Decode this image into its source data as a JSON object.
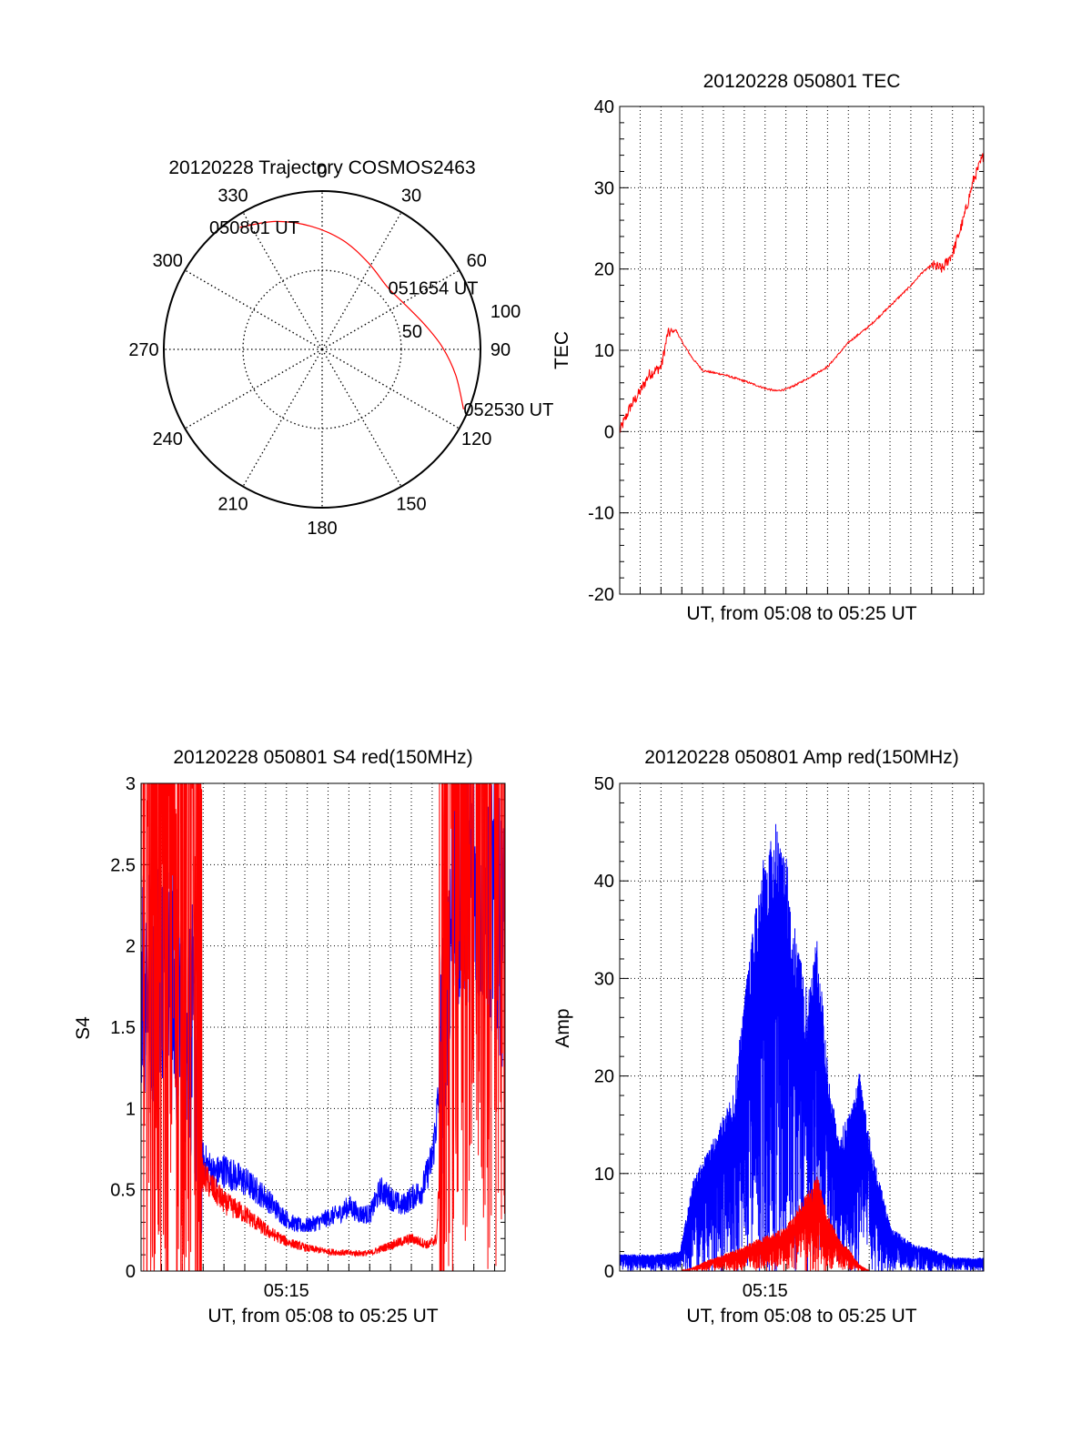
{
  "chart_data": [
    {
      "type": "polar",
      "title": "20120228 Trajectory COSMOS2463",
      "azimuth_labels": [
        "0",
        "30",
        "60",
        "90",
        "120",
        "150",
        "180",
        "210",
        "240",
        "270",
        "300",
        "330"
      ],
      "radial_labels": [
        {
          "text": "50",
          "value": 50
        },
        {
          "text": "100",
          "value": 100
        }
      ],
      "rlim": [
        0,
        100
      ],
      "grid": true,
      "colors": {
        "track": "#ff0000",
        "grid": "#000000"
      },
      "trajectory": [
        {
          "az": 326,
          "r": 93
        },
        {
          "az": 340,
          "r": 86
        },
        {
          "az": 355,
          "r": 78
        },
        {
          "az": 11,
          "r": 70
        },
        {
          "az": 28,
          "r": 62
        },
        {
          "az": 47,
          "r": 57
        },
        {
          "az": 63,
          "r": 60
        },
        {
          "az": 77,
          "r": 67
        },
        {
          "az": 89,
          "r": 76
        },
        {
          "az": 101,
          "r": 86
        },
        {
          "az": 113,
          "r": 97
        }
      ],
      "annotations": [
        {
          "text": "050801 UT",
          "az": 326,
          "r": 93
        },
        {
          "text": "051654 UT",
          "az": 47,
          "r": 57
        },
        {
          "text": "052530 UT",
          "az": 113,
          "r": 97
        }
      ]
    },
    {
      "type": "line",
      "title": "20120228 050801 TEC",
      "xlabel": "UT, from 05:08 to 05:25 UT",
      "ylabel": "TEC",
      "xlim": [
        "05:08:01",
        "05:25:30"
      ],
      "ylim": [
        -20,
        40
      ],
      "yticks": [
        "-20",
        "-10",
        "0",
        "10",
        "20",
        "30",
        "40"
      ],
      "xtick_labels": [],
      "grid": true,
      "series": [
        {
          "color": "#ff0000",
          "x": [
            "05:08:01",
            "05:08:31",
            "05:09:01",
            "05:09:25",
            "05:10:01",
            "05:10:19",
            "05:10:43",
            "05:11:01",
            "05:11:31",
            "05:12:01",
            "05:13:01",
            "05:14:01",
            "05:15:01",
            "05:15:31",
            "05:16:01",
            "05:16:31",
            "05:17:01",
            "05:18:01",
            "05:19:01",
            "05:20:01",
            "05:21:01",
            "05:22:01",
            "05:22:31",
            "05:23:01",
            "05:23:31",
            "05:24:01",
            "05:24:31",
            "05:25:01",
            "05:25:30"
          ],
          "y": [
            0,
            3,
            5,
            7,
            8,
            12,
            12.5,
            11,
            9,
            7.5,
            7,
            6.2,
            5.3,
            5,
            5.2,
            5.8,
            6.5,
            8,
            11,
            13,
            15.5,
            18,
            19.5,
            20.5,
            20,
            22,
            26,
            31,
            34
          ]
        }
      ]
    },
    {
      "type": "line",
      "title": "20120228 050801 S4 red(150MHz)",
      "xlabel": "UT, from 05:08 to 05:25 UT",
      "ylabel": "S4",
      "xlim": [
        "05:08:01",
        "05:25:30"
      ],
      "ylim": [
        0,
        3
      ],
      "yticks": [
        "0",
        "0.5",
        "1",
        "1.5",
        "2",
        "2.5",
        "3"
      ],
      "xtick_labels": [
        "05:15"
      ],
      "grid": true,
      "series": [
        {
          "color": "#0000ff",
          "x": [
            "05:08:01",
            "05:08:31",
            "05:09:01",
            "05:09:31",
            "05:10:01",
            "05:10:31",
            "05:10:55",
            "05:11:31",
            "05:12:01",
            "05:13:01",
            "05:14:01",
            "05:14:31",
            "05:15:01",
            "05:15:31",
            "05:16:01",
            "05:16:31",
            "05:17:01",
            "05:17:31",
            "05:18:01",
            "05:18:31",
            "05:19:01",
            "05:19:31",
            "05:20:01",
            "05:20:31",
            "05:21:01",
            "05:21:31",
            "05:22:01",
            "05:22:25",
            "05:22:43",
            "05:23:01",
            "05:23:31",
            "05:24:01",
            "05:24:31",
            "05:25:01",
            "05:25:30"
          ],
          "y": [
            1.9,
            1.8,
            2.0,
            1.7,
            1.6,
            1.45,
            0.7,
            0.6,
            0.62,
            0.55,
            0.45,
            0.38,
            0.32,
            0.28,
            0.28,
            0.3,
            0.33,
            0.35,
            0.4,
            0.35,
            0.35,
            0.5,
            0.45,
            0.4,
            0.45,
            0.5,
            0.7,
            1.2,
            1.9,
            2.3,
            2.5,
            2.4,
            2.3,
            2.2,
            2.0
          ]
        },
        {
          "color": "#ff0000",
          "x": [
            "05:08:01",
            "05:08:31",
            "05:09:01",
            "05:09:31",
            "05:10:01",
            "05:10:31",
            "05:10:55",
            "05:11:31",
            "05:12:01",
            "05:13:01",
            "05:14:01",
            "05:15:01",
            "05:16:01",
            "05:17:01",
            "05:18:01",
            "05:19:01",
            "05:20:01",
            "05:21:01",
            "05:21:49",
            "05:22:13",
            "05:22:25",
            "05:22:43",
            "05:23:01",
            "05:23:31",
            "05:24:01",
            "05:25:30"
          ],
          "y": [
            2.6,
            2.7,
            2.5,
            2.8,
            2.6,
            2.3,
            0.6,
            0.5,
            0.42,
            0.35,
            0.25,
            0.18,
            0.14,
            0.12,
            0.11,
            0.11,
            0.16,
            0.2,
            0.16,
            0.2,
            0.8,
            2.7,
            3.0,
            3.0,
            3.0,
            3.0
          ]
        }
      ]
    },
    {
      "type": "line",
      "title": "20120228 050801 Amp red(150MHz)",
      "xlabel": "UT, from 05:08 to 05:25 UT",
      "ylabel": "Amp",
      "xlim": [
        "05:08:01",
        "05:25:30"
      ],
      "ylim": [
        0,
        50
      ],
      "yticks": [
        "0",
        "10",
        "20",
        "30",
        "40",
        "50"
      ],
      "xtick_labels": [
        "05:15"
      ],
      "grid": true,
      "series": [
        {
          "color": "#0000ff",
          "x": [
            "05:08:01",
            "05:09:01",
            "05:10:01",
            "05:10:55",
            "05:11:31",
            "05:12:01",
            "05:12:31",
            "05:13:01",
            "05:13:31",
            "05:14:01",
            "05:14:31",
            "05:15:01",
            "05:15:31",
            "05:16:01",
            "05:16:31",
            "05:17:01",
            "05:17:31",
            "05:18:01",
            "05:18:31",
            "05:19:01",
            "05:19:31",
            "05:20:01",
            "05:20:31",
            "05:21:01",
            "05:22:01",
            "05:23:01",
            "05:24:01",
            "05:25:30"
          ],
          "y": [
            1.5,
            1.5,
            1.5,
            1.8,
            8,
            10,
            12,
            14,
            16,
            25,
            32,
            38,
            40,
            37,
            30,
            25,
            30,
            18,
            12,
            14,
            18,
            12,
            8,
            4,
            2.5,
            2,
            1.2,
            1.2
          ]
        },
        {
          "color": "#ff0000",
          "x": [
            "05:08:01",
            "05:10:55",
            "05:11:31",
            "05:12:01",
            "05:13:01",
            "05:14:01",
            "05:14:31",
            "05:15:01",
            "05:15:31",
            "05:16:01",
            "05:16:31",
            "05:17:01",
            "05:17:31",
            "05:18:01",
            "05:18:31",
            "05:19:01",
            "05:19:31",
            "05:20:01",
            "05:21:01",
            "05:25:30"
          ],
          "y": [
            0,
            0,
            0.3,
            0.8,
            1.5,
            2.2,
            2.8,
            3.2,
            3.5,
            4,
            5.5,
            7,
            8.5,
            5,
            3,
            2,
            0.6,
            0,
            0,
            0
          ]
        }
      ]
    }
  ]
}
